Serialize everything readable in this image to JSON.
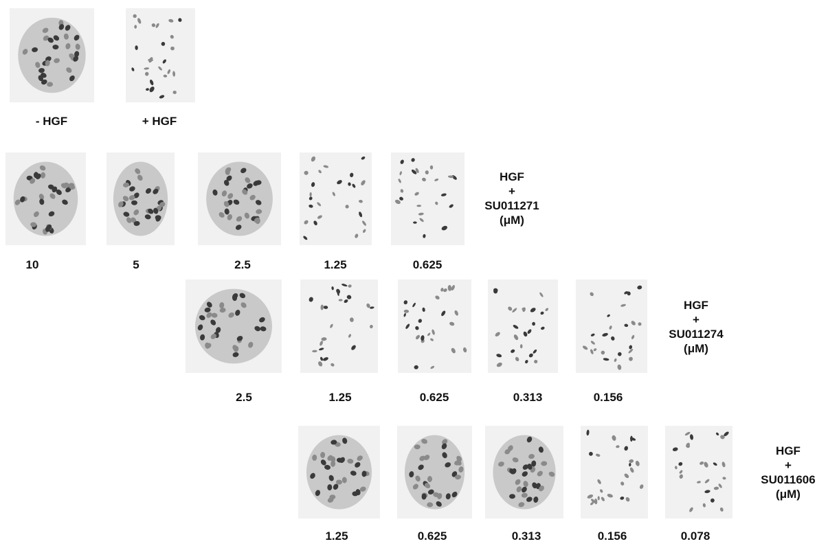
{
  "controls": {
    "labels": [
      "- HGF",
      "+ HGF"
    ]
  },
  "rows": [
    {
      "condition": [
        "HGF",
        "+",
        "SU011271",
        "(μM)"
      ],
      "doses": [
        "10",
        "5",
        "2.5",
        "1.25",
        "0.625"
      ]
    },
    {
      "condition": [
        "HGF",
        "+",
        "SU011274",
        "(μM)"
      ],
      "doses": [
        "2.5",
        "1.25",
        "0.625",
        "0.313",
        "0.156"
      ]
    },
    {
      "condition": [
        "HGF",
        "+",
        "SU011606",
        "(μM)"
      ],
      "doses": [
        "1.25",
        "0.625",
        "0.313",
        "0.156",
        "0.078"
      ]
    }
  ],
  "colors": {
    "cell_dark": "#3a3a3a",
    "cell_light": "#8a8a8a",
    "background": "#f1f1f1"
  }
}
